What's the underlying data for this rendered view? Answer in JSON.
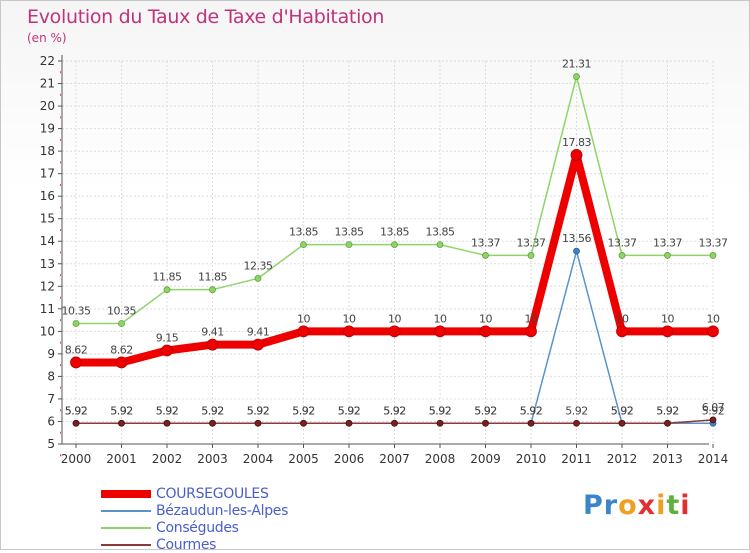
{
  "title": "Evolution du Taux de Taxe d'Habitation",
  "subtitle": "(en %)",
  "chart_data": {
    "type": "line",
    "x": [
      2000,
      2001,
      2002,
      2003,
      2004,
      2005,
      2006,
      2007,
      2008,
      2009,
      2010,
      2011,
      2012,
      2013,
      2014
    ],
    "ylim": [
      5,
      22
    ],
    "yticks": [
      5,
      6,
      7,
      8,
      9,
      10,
      11,
      12,
      13,
      14,
      15,
      16,
      17,
      18,
      19,
      20,
      21,
      22
    ],
    "grid": true,
    "legend_position": "bottom-left",
    "series": [
      {
        "name": "COURSEGOULES",
        "color": "#ee0000",
        "values": [
          8.62,
          8.62,
          9.15,
          9.41,
          9.41,
          10,
          10,
          10,
          10,
          10,
          10,
          17.83,
          10,
          10,
          10
        ],
        "labels": [
          "8.62",
          "8.62",
          "9.15",
          "9.41",
          "9.41",
          "10",
          "10",
          "10",
          "10",
          "10",
          "10",
          "17.83",
          "10",
          "10",
          "10"
        ]
      },
      {
        "name": "Bézaudun-les-Alpes",
        "color": "#5b93c9",
        "values": [
          5.92,
          5.92,
          5.92,
          5.92,
          5.92,
          5.92,
          5.92,
          5.92,
          5.92,
          5.92,
          5.92,
          13.56,
          5.92,
          5.92,
          5.92
        ],
        "labels": [
          "5.92",
          "5.92",
          "5.92",
          "5.92",
          "5.92",
          "5.92",
          "5.92",
          "5.92",
          "5.92",
          "5.92",
          "5.92",
          "13.56",
          "5.92",
          "5.92",
          "5.92"
        ]
      },
      {
        "name": "Conségudes",
        "color": "#8fd46a",
        "values": [
          10.35,
          10.35,
          11.85,
          11.85,
          12.35,
          13.85,
          13.85,
          13.85,
          13.85,
          13.37,
          13.37,
          21.31,
          13.37,
          13.37,
          13.37
        ],
        "labels": [
          "10.35",
          "10.35",
          "11.85",
          "11.85",
          "12.35",
          "13.85",
          "13.85",
          "13.85",
          "13.85",
          "13.37",
          "13.37",
          "21.31",
          "13.37",
          "13.37",
          "13.37"
        ]
      },
      {
        "name": "Courmes",
        "color": "#8b3a3a",
        "values": [
          5.92,
          5.92,
          5.92,
          5.92,
          5.92,
          5.92,
          5.92,
          5.92,
          5.92,
          5.92,
          5.92,
          5.92,
          5.92,
          5.92,
          6.07
        ],
        "labels": [
          "5.92",
          "5.92",
          "5.92",
          "5.92",
          "5.92",
          "5.92",
          "5.92",
          "5.92",
          "5.92",
          "5.92",
          "5.92",
          "5.92",
          "5.92",
          "5.92",
          "6.07"
        ]
      }
    ]
  },
  "logo": {
    "text": "Proxiti"
  }
}
